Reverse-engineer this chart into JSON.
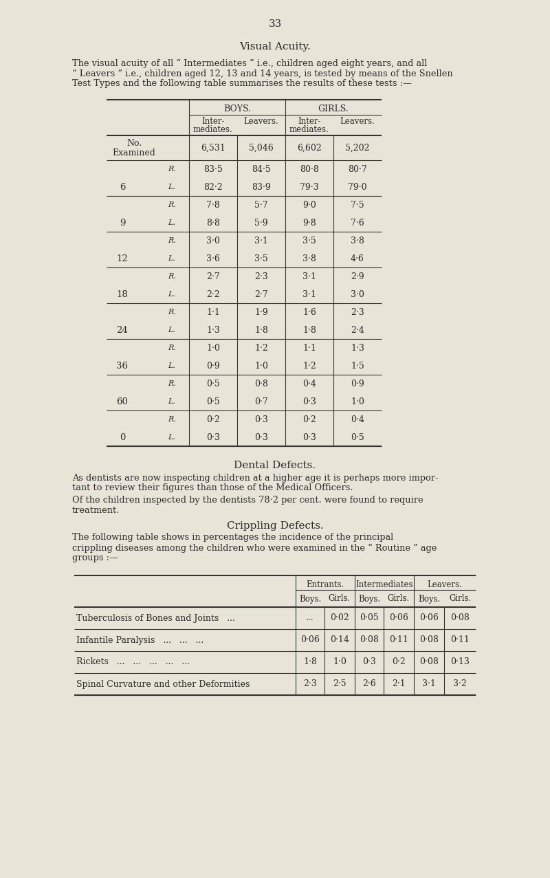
{
  "page_number": "33",
  "bg_color": "#e8e4d8",
  "text_color": "#2a2a2a",
  "section1_title": "Visual Acuity.",
  "section2_title": "Dental Defects.",
  "section3_title": "Crippling Defects.",
  "section1_para_lines": [
    "The visual acuity of all “ Intermediates ” i.e., children aged eight years, and all",
    "“ Leavers ” i.e., children aged 12, 13 and 14 years, is tested by means of the Snellen",
    "Test Types and the following table summarises the results of these tests :—"
  ],
  "section2_para1_lines": [
    "As dentists are now inspecting children at a higher age it is perhaps more impor-",
    "tant to review their figures than those of the Medical Officers."
  ],
  "section2_para2_lines": [
    "Of the children inspected by the dentists 78·2 per cent. were found to require",
    "treatment."
  ],
  "section3_para_lines": [
    "The following table shows in percentages the incidence of the principal",
    "crippling diseases among the children who were examined in the “ Routine ” age",
    "groups :—"
  ],
  "table1_rows": [
    [
      "6",
      "R.",
      "83·5",
      "84·5",
      "80·8",
      "80·7"
    ],
    [
      "",
      "L.",
      "82·2",
      "83·9",
      "79·3",
      "79·0"
    ],
    [
      "9",
      "R.",
      "7·8",
      "5·7",
      "9·0",
      "7·5"
    ],
    [
      "",
      "L.",
      "8·8",
      "5·9",
      "9·8",
      "7·6"
    ],
    [
      "12",
      "R.",
      "3·0",
      "3·1",
      "3·5",
      "3·8"
    ],
    [
      "",
      "L.",
      "3·6",
      "3·5",
      "3·8",
      "4·6"
    ],
    [
      "18",
      "R.",
      "2·7",
      "2·3",
      "3·1",
      "2·9"
    ],
    [
      "",
      "L.",
      "2·2",
      "2·7",
      "3·1",
      "3·0"
    ],
    [
      "24",
      "R.",
      "1·1",
      "1·9",
      "1·6",
      "2·3"
    ],
    [
      "",
      "L.",
      "1·3",
      "1·8",
      "1·8",
      "2·4"
    ],
    [
      "36",
      "R.",
      "1·0",
      "1·2",
      "1·1",
      "1·3"
    ],
    [
      "",
      "L.",
      "0·9",
      "1·0",
      "1·2",
      "1·5"
    ],
    [
      "60",
      "R.",
      "0·5",
      "0·8",
      "0·4",
      "0·9"
    ],
    [
      "",
      "L.",
      "0·5",
      "0·7",
      "0·3",
      "1·0"
    ],
    [
      "0",
      "R.",
      "0·2",
      "0·3",
      "0·2",
      "0·4"
    ],
    [
      "",
      "L.",
      "0·3",
      "0·3",
      "0·3",
      "0·5"
    ]
  ],
  "table2_data": [
    [
      "Tuberculosis of Bones and Joints",
      "...",
      "...",
      "0·02",
      "0·05",
      "0·06",
      "0·06",
      "0·08"
    ],
    [
      "Infantile Paralysis",
      "0·06",
      "0·14",
      "0·08",
      "0·11",
      "0·08",
      "0·11"
    ],
    [
      "Rickets",
      "1·8",
      "1·0",
      "0·3",
      "0·2",
      "0·08",
      "0·13"
    ],
    [
      "Spinal Curvature and other Deformities",
      "2·3",
      "2·5",
      "2·6",
      "2·1",
      "3·1",
      "3·2"
    ]
  ],
  "table2_dots": [
    "...",
    "...",
    "...",
    "..."
  ],
  "lw_thick": 1.5,
  "lw_thin": 0.8
}
